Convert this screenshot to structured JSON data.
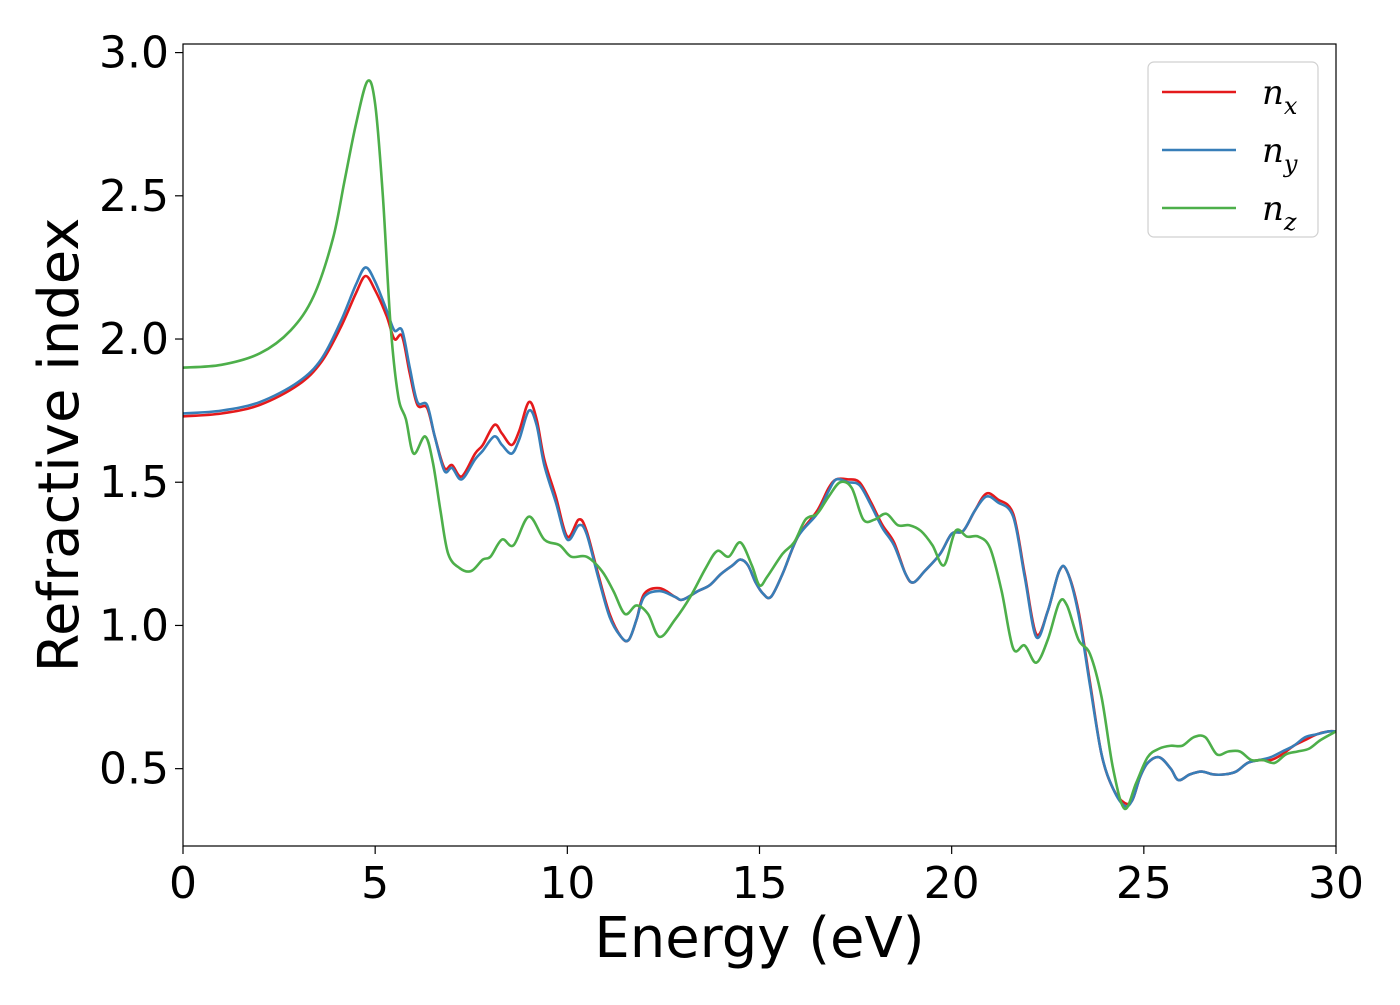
{
  "chart_data": {
    "type": "line",
    "title": "",
    "xlabel": "Energy (eV)",
    "ylabel": "Refractive index",
    "xlim": [
      0,
      30
    ],
    "ylim": [
      0.23,
      3.03
    ],
    "x_ticks": [
      0,
      5,
      10,
      15,
      20,
      25,
      30
    ],
    "x_tick_labels": [
      "0",
      "5",
      "10",
      "15",
      "20",
      "25",
      "30"
    ],
    "y_ticks": [
      0.5,
      1.0,
      1.5,
      2.0,
      2.5,
      3.0
    ],
    "y_tick_labels": [
      "0.5",
      "1.0",
      "1.5",
      "2.0",
      "2.5",
      "3.0"
    ],
    "grid": false,
    "legend_position": "top-right",
    "series": [
      {
        "name": "n_x",
        "label_base": "n",
        "label_sub": "x",
        "color": "#e41a1c",
        "points": [
          [
            0,
            1.73
          ],
          [
            1,
            1.74
          ],
          [
            2,
            1.77
          ],
          [
            3,
            1.84
          ],
          [
            3.6,
            1.92
          ],
          [
            4.1,
            2.04
          ],
          [
            4.5,
            2.16
          ],
          [
            4.75,
            2.22
          ],
          [
            5.0,
            2.17
          ],
          [
            5.3,
            2.08
          ],
          [
            5.5,
            2.0
          ],
          [
            5.7,
            2.01
          ],
          [
            5.9,
            1.88
          ],
          [
            6.1,
            1.77
          ],
          [
            6.35,
            1.76
          ],
          [
            6.55,
            1.66
          ],
          [
            6.8,
            1.55
          ],
          [
            7.0,
            1.56
          ],
          [
            7.25,
            1.52
          ],
          [
            7.6,
            1.6
          ],
          [
            7.8,
            1.63
          ],
          [
            8.1,
            1.7
          ],
          [
            8.3,
            1.67
          ],
          [
            8.55,
            1.63
          ],
          [
            8.75,
            1.68
          ],
          [
            9.0,
            1.78
          ],
          [
            9.2,
            1.72
          ],
          [
            9.4,
            1.58
          ],
          [
            9.7,
            1.45
          ],
          [
            10.0,
            1.31
          ],
          [
            10.3,
            1.37
          ],
          [
            10.5,
            1.33
          ],
          [
            10.8,
            1.18
          ],
          [
            11.1,
            1.04
          ],
          [
            11.4,
            0.96
          ],
          [
            11.6,
            0.95
          ],
          [
            11.8,
            1.02
          ],
          [
            12.0,
            1.11
          ],
          [
            12.4,
            1.13
          ],
          [
            12.8,
            1.1
          ],
          [
            13.0,
            1.09
          ],
          [
            13.4,
            1.12
          ],
          [
            13.7,
            1.14
          ],
          [
            14.0,
            1.18
          ],
          [
            14.3,
            1.21
          ],
          [
            14.5,
            1.23
          ],
          [
            14.7,
            1.21
          ],
          [
            14.9,
            1.15
          ],
          [
            15.1,
            1.11
          ],
          [
            15.3,
            1.1
          ],
          [
            15.6,
            1.18
          ],
          [
            16.0,
            1.31
          ],
          [
            16.5,
            1.4
          ],
          [
            16.8,
            1.48
          ],
          [
            17.0,
            1.51
          ],
          [
            17.3,
            1.51
          ],
          [
            17.6,
            1.5
          ],
          [
            17.9,
            1.43
          ],
          [
            18.2,
            1.35
          ],
          [
            18.5,
            1.29
          ],
          [
            18.8,
            1.18
          ],
          [
            19.0,
            1.15
          ],
          [
            19.3,
            1.19
          ],
          [
            19.7,
            1.25
          ],
          [
            20.0,
            1.32
          ],
          [
            20.3,
            1.33
          ],
          [
            20.6,
            1.4
          ],
          [
            20.9,
            1.46
          ],
          [
            21.2,
            1.44
          ],
          [
            21.6,
            1.39
          ],
          [
            21.9,
            1.18
          ],
          [
            22.2,
            0.97
          ],
          [
            22.5,
            1.05
          ],
          [
            22.8,
            1.19
          ],
          [
            23.0,
            1.19
          ],
          [
            23.3,
            1.05
          ],
          [
            23.6,
            0.8
          ],
          [
            23.9,
            0.55
          ],
          [
            24.2,
            0.43
          ],
          [
            24.5,
            0.38
          ],
          [
            24.7,
            0.39
          ],
          [
            24.9,
            0.47
          ],
          [
            25.1,
            0.52
          ],
          [
            25.4,
            0.54
          ],
          [
            25.7,
            0.5
          ],
          [
            25.9,
            0.46
          ],
          [
            26.2,
            0.48
          ],
          [
            26.5,
            0.49
          ],
          [
            26.8,
            0.48
          ],
          [
            27.1,
            0.48
          ],
          [
            27.4,
            0.49
          ],
          [
            27.7,
            0.52
          ],
          [
            28.0,
            0.53
          ],
          [
            28.3,
            0.53
          ],
          [
            28.6,
            0.55
          ],
          [
            28.9,
            0.58
          ],
          [
            29.2,
            0.6
          ],
          [
            29.5,
            0.62
          ],
          [
            29.8,
            0.63
          ],
          [
            30,
            0.63
          ]
        ]
      },
      {
        "name": "n_y",
        "label_base": "n",
        "label_sub": "y",
        "color": "#377eb8",
        "points": [
          [
            0,
            1.74
          ],
          [
            1,
            1.75
          ],
          [
            2,
            1.78
          ],
          [
            3,
            1.85
          ],
          [
            3.6,
            1.93
          ],
          [
            4.1,
            2.06
          ],
          [
            4.5,
            2.19
          ],
          [
            4.75,
            2.25
          ],
          [
            5.0,
            2.2
          ],
          [
            5.3,
            2.1
          ],
          [
            5.5,
            2.03
          ],
          [
            5.7,
            2.03
          ],
          [
            5.9,
            1.9
          ],
          [
            6.1,
            1.78
          ],
          [
            6.35,
            1.77
          ],
          [
            6.55,
            1.66
          ],
          [
            6.8,
            1.54
          ],
          [
            7.0,
            1.55
          ],
          [
            7.25,
            1.51
          ],
          [
            7.6,
            1.58
          ],
          [
            7.8,
            1.61
          ],
          [
            8.1,
            1.66
          ],
          [
            8.3,
            1.63
          ],
          [
            8.55,
            1.6
          ],
          [
            8.75,
            1.65
          ],
          [
            9.0,
            1.75
          ],
          [
            9.2,
            1.7
          ],
          [
            9.4,
            1.56
          ],
          [
            9.7,
            1.43
          ],
          [
            10.0,
            1.3
          ],
          [
            10.3,
            1.35
          ],
          [
            10.5,
            1.32
          ],
          [
            10.8,
            1.17
          ],
          [
            11.1,
            1.03
          ],
          [
            11.4,
            0.96
          ],
          [
            11.6,
            0.95
          ],
          [
            11.8,
            1.02
          ],
          [
            12.0,
            1.1
          ],
          [
            12.4,
            1.12
          ],
          [
            12.8,
            1.1
          ],
          [
            13.0,
            1.09
          ],
          [
            13.4,
            1.12
          ],
          [
            13.7,
            1.14
          ],
          [
            14.0,
            1.18
          ],
          [
            14.3,
            1.21
          ],
          [
            14.5,
            1.23
          ],
          [
            14.7,
            1.21
          ],
          [
            14.9,
            1.15
          ],
          [
            15.1,
            1.11
          ],
          [
            15.3,
            1.1
          ],
          [
            15.6,
            1.18
          ],
          [
            16.0,
            1.31
          ],
          [
            16.5,
            1.39
          ],
          [
            16.8,
            1.47
          ],
          [
            17.0,
            1.51
          ],
          [
            17.3,
            1.5
          ],
          [
            17.6,
            1.49
          ],
          [
            17.9,
            1.42
          ],
          [
            18.2,
            1.34
          ],
          [
            18.5,
            1.28
          ],
          [
            18.8,
            1.18
          ],
          [
            19.0,
            1.15
          ],
          [
            19.3,
            1.19
          ],
          [
            19.7,
            1.25
          ],
          [
            20.0,
            1.32
          ],
          [
            20.3,
            1.33
          ],
          [
            20.6,
            1.4
          ],
          [
            20.9,
            1.45
          ],
          [
            21.2,
            1.43
          ],
          [
            21.6,
            1.38
          ],
          [
            21.9,
            1.17
          ],
          [
            22.2,
            0.96
          ],
          [
            22.5,
            1.05
          ],
          [
            22.8,
            1.19
          ],
          [
            23.0,
            1.19
          ],
          [
            23.3,
            1.04
          ],
          [
            23.6,
            0.79
          ],
          [
            23.9,
            0.55
          ],
          [
            24.2,
            0.43
          ],
          [
            24.5,
            0.37
          ],
          [
            24.7,
            0.39
          ],
          [
            24.9,
            0.47
          ],
          [
            25.1,
            0.52
          ],
          [
            25.4,
            0.54
          ],
          [
            25.7,
            0.5
          ],
          [
            25.9,
            0.46
          ],
          [
            26.2,
            0.48
          ],
          [
            26.5,
            0.49
          ],
          [
            26.8,
            0.48
          ],
          [
            27.1,
            0.48
          ],
          [
            27.4,
            0.49
          ],
          [
            27.7,
            0.52
          ],
          [
            28.0,
            0.53
          ],
          [
            28.3,
            0.54
          ],
          [
            28.6,
            0.56
          ],
          [
            28.9,
            0.58
          ],
          [
            29.2,
            0.61
          ],
          [
            29.5,
            0.62
          ],
          [
            29.8,
            0.63
          ],
          [
            30,
            0.63
          ]
        ]
      },
      {
        "name": "n_z",
        "label_base": "n",
        "label_sub": "z",
        "color": "#4daf4a",
        "points": [
          [
            0,
            1.9
          ],
          [
            1,
            1.91
          ],
          [
            2,
            1.95
          ],
          [
            2.8,
            2.03
          ],
          [
            3.4,
            2.15
          ],
          [
            3.9,
            2.35
          ],
          [
            4.2,
            2.55
          ],
          [
            4.5,
            2.75
          ],
          [
            4.8,
            2.9
          ],
          [
            5.0,
            2.82
          ],
          [
            5.2,
            2.5
          ],
          [
            5.4,
            2.05
          ],
          [
            5.6,
            1.8
          ],
          [
            5.8,
            1.72
          ],
          [
            6.0,
            1.6
          ],
          [
            6.3,
            1.66
          ],
          [
            6.5,
            1.57
          ],
          [
            6.7,
            1.4
          ],
          [
            6.9,
            1.25
          ],
          [
            7.2,
            1.2
          ],
          [
            7.5,
            1.19
          ],
          [
            7.8,
            1.23
          ],
          [
            8.0,
            1.24
          ],
          [
            8.3,
            1.3
          ],
          [
            8.6,
            1.28
          ],
          [
            9.0,
            1.38
          ],
          [
            9.4,
            1.3
          ],
          [
            9.8,
            1.28
          ],
          [
            10.1,
            1.24
          ],
          [
            10.5,
            1.24
          ],
          [
            10.9,
            1.19
          ],
          [
            11.2,
            1.12
          ],
          [
            11.5,
            1.04
          ],
          [
            11.8,
            1.07
          ],
          [
            12.1,
            1.04
          ],
          [
            12.4,
            0.96
          ],
          [
            12.8,
            1.02
          ],
          [
            13.2,
            1.1
          ],
          [
            13.6,
            1.2
          ],
          [
            13.9,
            1.26
          ],
          [
            14.2,
            1.24
          ],
          [
            14.5,
            1.29
          ],
          [
            14.8,
            1.21
          ],
          [
            15.0,
            1.14
          ],
          [
            15.2,
            1.17
          ],
          [
            15.6,
            1.25
          ],
          [
            15.9,
            1.29
          ],
          [
            16.2,
            1.37
          ],
          [
            16.5,
            1.39
          ],
          [
            16.8,
            1.45
          ],
          [
            17.1,
            1.5
          ],
          [
            17.4,
            1.48
          ],
          [
            17.7,
            1.37
          ],
          [
            18.0,
            1.37
          ],
          [
            18.3,
            1.39
          ],
          [
            18.6,
            1.35
          ],
          [
            18.9,
            1.35
          ],
          [
            19.2,
            1.33
          ],
          [
            19.5,
            1.28
          ],
          [
            19.8,
            1.21
          ],
          [
            20.1,
            1.33
          ],
          [
            20.4,
            1.31
          ],
          [
            20.7,
            1.31
          ],
          [
            21.0,
            1.27
          ],
          [
            21.3,
            1.12
          ],
          [
            21.6,
            0.92
          ],
          [
            21.9,
            0.93
          ],
          [
            22.2,
            0.87
          ],
          [
            22.5,
            0.95
          ],
          [
            22.8,
            1.08
          ],
          [
            23.0,
            1.07
          ],
          [
            23.3,
            0.95
          ],
          [
            23.6,
            0.9
          ],
          [
            23.9,
            0.75
          ],
          [
            24.2,
            0.5
          ],
          [
            24.5,
            0.36
          ],
          [
            24.8,
            0.45
          ],
          [
            25.1,
            0.54
          ],
          [
            25.4,
            0.57
          ],
          [
            25.7,
            0.58
          ],
          [
            26.0,
            0.58
          ],
          [
            26.3,
            0.61
          ],
          [
            26.6,
            0.61
          ],
          [
            26.9,
            0.55
          ],
          [
            27.2,
            0.56
          ],
          [
            27.5,
            0.56
          ],
          [
            27.8,
            0.53
          ],
          [
            28.1,
            0.53
          ],
          [
            28.4,
            0.52
          ],
          [
            28.7,
            0.55
          ],
          [
            29.0,
            0.56
          ],
          [
            29.3,
            0.57
          ],
          [
            29.6,
            0.6
          ],
          [
            30,
            0.63
          ]
        ]
      }
    ]
  }
}
